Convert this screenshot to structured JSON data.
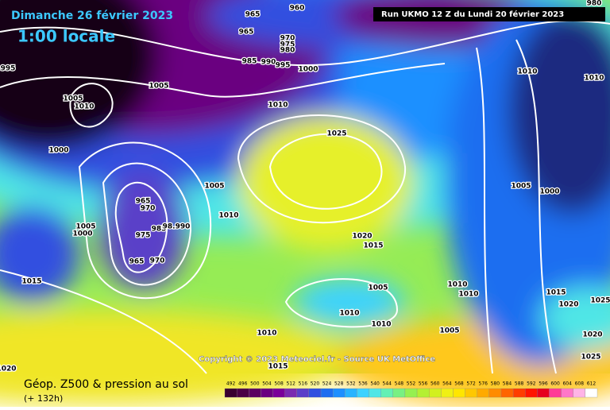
{
  "header": {
    "date": "Dimanche 26 février 2023",
    "time": "1:00 locale",
    "run": "Run UKMO 12 Z du Lundi 20 février 2023"
  },
  "copyright": "Copyright © 2023 Meteociel.fr - Source UK MetOffice",
  "footer": {
    "title": "Géop. Z500 & pression au sol",
    "lead": "(+ 132h)"
  },
  "isobar_labels": [
    "980",
    "995",
    "960",
    "965",
    "965",
    "970",
    "975",
    "980",
    "985",
    "990",
    "995",
    "1000",
    "1005",
    "1005",
    "1010",
    "1010",
    "1010",
    "1000",
    "1025",
    "1005",
    "1010",
    "965",
    "970",
    "975",
    "985",
    "98.990",
    "965",
    "970",
    "1005",
    "1000",
    "1015",
    "1020",
    "1015",
    "1005",
    "1010",
    "1010",
    "1010",
    "1005",
    "1015",
    "1020",
    "1005",
    "1000",
    "1010",
    "1010",
    "1010",
    "1015",
    "1020",
    "1025",
    "1020",
    "1025"
  ],
  "legend": {
    "values": [
      492,
      496,
      500,
      504,
      508,
      512,
      516,
      520,
      524,
      528,
      532,
      536,
      540,
      544,
      548,
      552,
      556,
      560,
      564,
      568,
      572,
      576,
      580,
      584,
      588,
      592,
      596,
      600,
      604,
      608,
      612
    ],
    "colors": [
      "#3a0030",
      "#4b0045",
      "#5c0060",
      "#6a0080",
      "#7a0099",
      "#7a2ab0",
      "#5a3fc8",
      "#3050e0",
      "#1e6ef0",
      "#1e90ff",
      "#28b4ff",
      "#3cd2ff",
      "#50e6e6",
      "#64f0b4",
      "#78f082",
      "#96f050",
      "#b4f032",
      "#d2f01e",
      "#f0f014",
      "#ffe600",
      "#ffc800",
      "#ffaa00",
      "#ff8c00",
      "#ff6400",
      "#ff3c00",
      "#ff1400",
      "#e6001e",
      "#ff3c96",
      "#ff78c8",
      "#ffb4e6",
      "#ffffff"
    ]
  }
}
